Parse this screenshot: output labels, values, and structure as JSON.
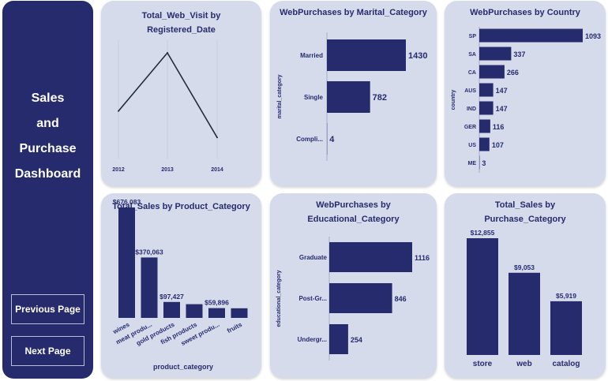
{
  "sidebar": {
    "title_lines": [
      "Sales",
      "and",
      "Purchase",
      "Dashboard"
    ],
    "prev_label": "Previous Page",
    "next_label": "Next Page",
    "color": "#262b6d"
  },
  "colors": {
    "bar": "#262b6d",
    "card_bg": "#d6dbec",
    "text": "#262b6d",
    "line": "#1f2d3d"
  },
  "chart_data": [
    {
      "id": "web_visit",
      "type": "line",
      "title_lines": [
        "Total_Web_Visit by",
        "Registered_Date"
      ],
      "x": [
        "2012",
        "2013",
        "2014"
      ],
      "values": [
        4.5,
        6.7,
        3.5
      ],
      "ylim": [
        3.0,
        7.0
      ],
      "xlabel": "",
      "ylabel": ""
    },
    {
      "id": "marital",
      "type": "bar",
      "orientation": "horizontal",
      "title_lines": [
        "WebPurchases by Marital_Category"
      ],
      "categories": [
        "Married",
        "Single",
        "Compli..."
      ],
      "values": [
        1430,
        782,
        4
      ],
      "value_labels": [
        "1430",
        "782",
        "4"
      ],
      "ylabel": "marital_category",
      "xlim": [
        0,
        1430
      ]
    },
    {
      "id": "country",
      "type": "bar",
      "orientation": "horizontal",
      "title_lines": [
        "WebPurchases by Country"
      ],
      "categories": [
        "SP",
        "SA",
        "CA",
        "AUS",
        "IND",
        "GER",
        "US",
        "ME"
      ],
      "values": [
        1093,
        337,
        266,
        147,
        147,
        116,
        107,
        3
      ],
      "value_labels": [
        "1093",
        "337",
        "266",
        "147",
        "147",
        "116",
        "107",
        "3"
      ],
      "ylabel": "country",
      "xlim": [
        0,
        1093
      ]
    },
    {
      "id": "product",
      "type": "bar",
      "title_lines": [
        "Total_Sales by Product_Category"
      ],
      "categories": [
        "wines",
        "meat produ...",
        "gold products",
        "fish products",
        "sweet produ...",
        "fruits"
      ],
      "values": [
        676083,
        370063,
        97427,
        84057,
        59896,
        58917
      ],
      "value_labels": [
        "$676,083",
        "$370,063",
        "$97,427",
        "",
        "$59,896",
        ""
      ],
      "xlabel": "product_category",
      "ylim": [
        0,
        676083
      ]
    },
    {
      "id": "education",
      "type": "bar",
      "orientation": "horizontal",
      "title_lines": [
        "WebPurchases by",
        "Educational_Category"
      ],
      "categories": [
        "Graduate",
        "Post-Gr...",
        "Undergr..."
      ],
      "values": [
        1116,
        846,
        254
      ],
      "value_labels": [
        "1116",
        "846",
        "254"
      ],
      "ylabel": "educational_category",
      "xlim": [
        0,
        1116
      ]
    },
    {
      "id": "purchase",
      "type": "bar",
      "title_lines": [
        "Total_Sales by",
        "Purchase_Category"
      ],
      "categories": [
        "store",
        "web",
        "catalog"
      ],
      "values": [
        12855,
        9053,
        5919
      ],
      "value_labels": [
        "$12,855",
        "$9,053",
        "$5,919"
      ],
      "ylim": [
        0,
        12855
      ]
    }
  ]
}
